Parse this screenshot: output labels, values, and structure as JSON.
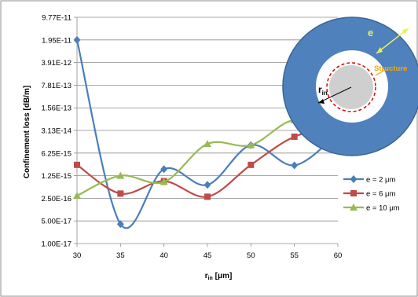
{
  "chart_data": {
    "type": "line",
    "x_label": "r",
    "x_label_sub": "in",
    "x_label_unit": " [μm]",
    "y_label": "Confinement loss [dB/m]",
    "y_scale": "log",
    "y_tick_labels": [
      "9.77E-11",
      "1.95E-11",
      "3.91E-12",
      "7.81E-13",
      "1.56E-13",
      "3.13E-14",
      "6.25E-15",
      "1.25E-15",
      "2.50E-16",
      "5.00E-17",
      "1.00E-17"
    ],
    "y_tick_values": [
      9.77e-11,
      1.95e-11,
      3.91e-12,
      7.81e-13,
      1.56e-13,
      3.13e-14,
      6.25e-15,
      1.25e-15,
      2.5e-16,
      5e-17,
      1e-17
    ],
    "x": [
      30,
      35,
      40,
      45,
      50,
      55,
      60
    ],
    "x_tick_labels": [
      "30",
      "35",
      "40",
      "45",
      "50",
      "55",
      "60"
    ],
    "xlim": [
      30,
      60
    ],
    "ylim": [
      1e-17,
      9.77e-11
    ],
    "grid": true,
    "legend_position": "right",
    "series": [
      {
        "name": "e = 2 μm",
        "color": "#4a7ebb",
        "marker": "diamond",
        "values": [
          1.95e-11,
          4e-17,
          2e-15,
          6.5e-16,
          1.1e-14,
          2.6e-15,
          2.5e-14
        ]
      },
      {
        "name": "e = 6 μm",
        "color": "#be4b48",
        "marker": "square",
        "values": [
          2.7e-15,
          3.5e-16,
          8.5e-16,
          2.8e-16,
          2.7e-15,
          2e-14,
          4e-14
        ]
      },
      {
        "name": "e = 10 μm",
        "color": "#98b954",
        "marker": "triangle",
        "values": [
          3e-16,
          1.25e-15,
          8e-16,
          1.2e-14,
          1.1e-14,
          6.5e-14,
          2e-14
        ]
      }
    ],
    "inset": {
      "e_label": "e",
      "structure_label": "Structure",
      "r_label": "r",
      "r_label_sub": "in"
    }
  }
}
